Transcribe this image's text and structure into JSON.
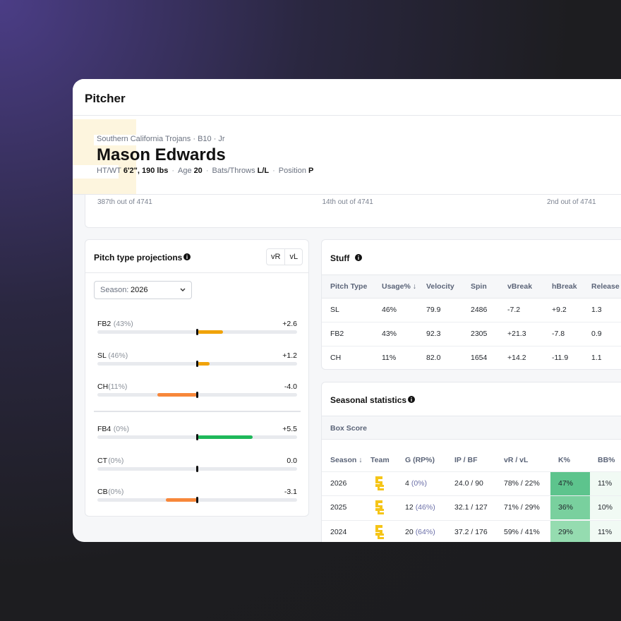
{
  "header": {
    "title": "Pitcher"
  },
  "profile": {
    "subtitle": "Southern California Trojans · B10 · Jr",
    "name": "Mason Edwards",
    "details": [
      {
        "label": "HT/WT",
        "value": "6'2\", 190 lbs"
      },
      {
        "label": "Age",
        "value": "20"
      },
      {
        "label": "Bats/Throws",
        "value": "L/L"
      },
      {
        "label": "Position",
        "value": "P"
      }
    ]
  },
  "rankings": [
    "387th out of 4741",
    "14th out of 4741",
    "2nd out of 4741"
  ],
  "projections": {
    "title": "Pitch type projections",
    "toggles": [
      "vR",
      "vL"
    ],
    "season_label": "Season:",
    "season": "2026",
    "pitches": [
      {
        "name": "FB2",
        "usage": "(43%)",
        "value": "+2.6",
        "color": "#f0a30a"
      },
      {
        "name": "SL",
        "usage": "(46%)",
        "value": "+1.2",
        "color": "#f0a30a"
      },
      {
        "name": "CH",
        "usage": "(11%)",
        "value": "-4.0",
        "color": "#f7873a"
      }
    ],
    "other_pitches": [
      {
        "name": "FB4",
        "usage": "(0%)",
        "value": "+5.5",
        "color": "#1fb85a"
      },
      {
        "name": "CT",
        "usage": "(0%)",
        "value": "0.0",
        "color": "#f0a30a"
      },
      {
        "name": "CB",
        "usage": "(0%)",
        "value": "-3.1",
        "color": "#f7873a"
      }
    ]
  },
  "stuff": {
    "title": "Stuff",
    "columns": [
      "Pitch Type",
      "Usage% ↓",
      "Velocity",
      "Spin",
      "vBreak",
      "hBreak",
      "Release S"
    ],
    "rows": [
      [
        "SL",
        "46%",
        "79.9",
        "2486",
        "-7.2",
        "+9.2",
        "1.3"
      ],
      [
        "FB2",
        "43%",
        "92.3",
        "2305",
        "+21.3",
        "-7.8",
        "0.9"
      ],
      [
        "CH",
        "11%",
        "82.0",
        "1654",
        "+14.2",
        "-11.9",
        "1.1"
      ]
    ]
  },
  "seasonal": {
    "title": "Seasonal statistics",
    "section": "Box Score",
    "columns": [
      "Season ↓",
      "Team",
      "G (RP%)",
      "IP / BF",
      "vR / vL",
      "K%",
      "BB%"
    ],
    "rows": [
      {
        "season": "2026",
        "games": "4",
        "rp": "(0%)",
        "ip_bf": "24.0 / 90",
        "vr_vl": "78% / 22%",
        "k": "47%",
        "k_color": "#5dc48d",
        "bb": "11%"
      },
      {
        "season": "2025",
        "games": "12",
        "rp": "(46%)",
        "ip_bf": "32.1 / 127",
        "vr_vl": "71% / 29%",
        "k": "36%",
        "k_color": "#79d09e",
        "bb": "10%"
      },
      {
        "season": "2024",
        "games": "20",
        "rp": "(64%)",
        "ip_bf": "37.2 / 176",
        "vr_vl": "59% / 41%",
        "k": "29%",
        "k_color": "#95dcb0",
        "bb": "11%"
      }
    ]
  }
}
